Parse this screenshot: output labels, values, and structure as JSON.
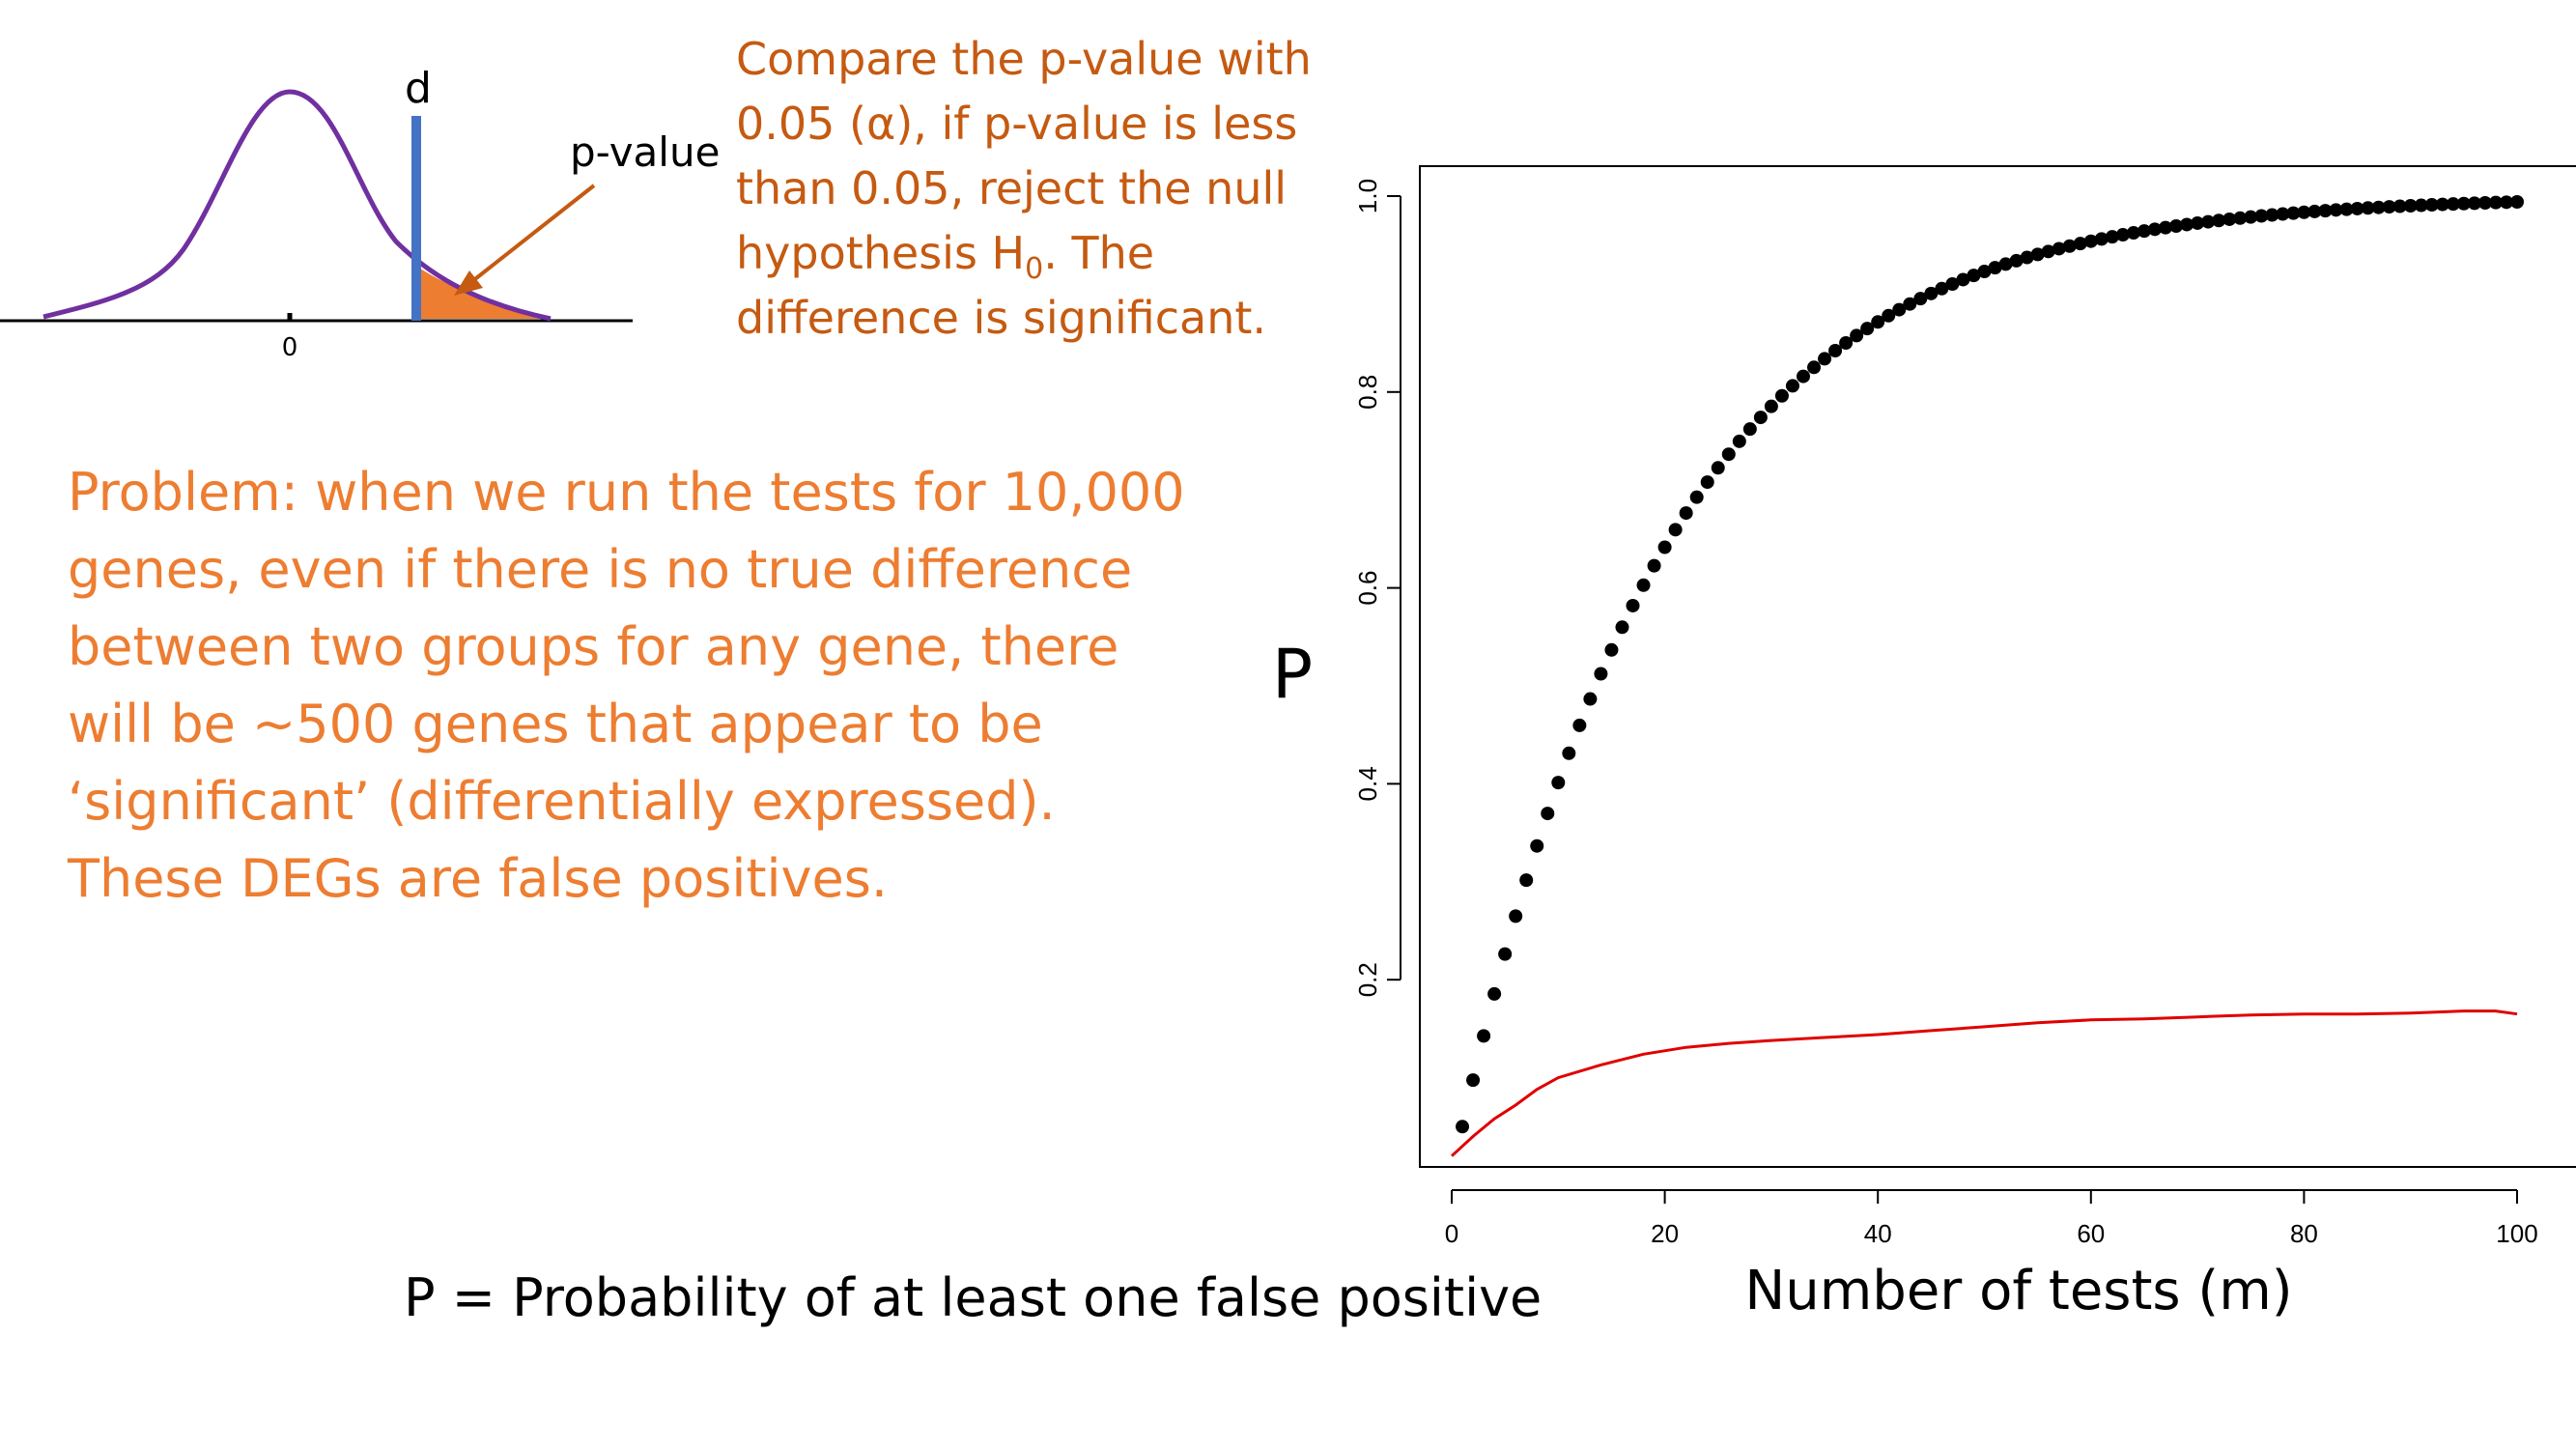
{
  "diagram": {
    "d_label": "d",
    "pvalue_label": "p-value",
    "zero_label": "0"
  },
  "compare": {
    "line1": "Compare the p-value with",
    "line2": "0.05 (α), if p-value is less",
    "line3": "than 0.05, reject the null",
    "line4a": "hypothesis H",
    "line4sub": "0",
    "line4b": ". The",
    "line5": "difference is significant."
  },
  "problem": {
    "lines": [
      "Problem: when we run the tests for 10,000",
      "genes, even if there is no true difference",
      "between two groups for any gene, there",
      "will be ~500 genes that appear to be",
      "‘significant’ (differentially expressed).",
      "These DEGs are false positives."
    ]
  },
  "caption": "P = Probability of at least one false positive",
  "colors": {
    "orange_dark": "#c55a11",
    "orange": "#ed7d31",
    "curve": "#7030a0",
    "bar": "#4472c4",
    "red_line": "#e00000"
  },
  "chart_data": {
    "type": "scatter",
    "xlabel": "Number of tests (m)",
    "ylabel": "P",
    "xlim": [
      0,
      100
    ],
    "ylim": [
      0.02,
      1.03
    ],
    "xticks": [
      "0",
      "20",
      "40",
      "60",
      "80",
      "100"
    ],
    "yticks": [
      "0.2",
      "0.4",
      "0.6",
      "0.8",
      "1.0"
    ],
    "grid": false,
    "series": [
      {
        "marker": "dot",
        "formula": "1-(1-0.05)^m",
        "x_range": [
          1,
          100
        ]
      },
      {
        "marker": "line",
        "x": [
          0,
          2,
          4,
          6,
          8,
          10,
          14,
          18,
          22,
          26,
          30,
          35,
          40,
          45,
          50,
          55,
          60,
          65,
          70,
          75,
          80,
          85,
          90,
          95,
          98,
          100
        ],
        "y": [
          0.02,
          0.04,
          0.058,
          0.072,
          0.088,
          0.1,
          0.113,
          0.124,
          0.131,
          0.135,
          0.138,
          0.141,
          0.144,
          0.148,
          0.152,
          0.156,
          0.159,
          0.16,
          0.162,
          0.164,
          0.165,
          0.165,
          0.166,
          0.168,
          0.168,
          0.165
        ]
      }
    ]
  }
}
